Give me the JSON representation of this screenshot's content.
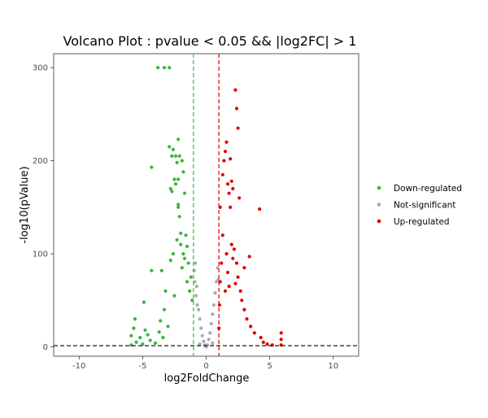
{
  "chart_data": {
    "type": "scatter",
    "title": "Volcano Plot : pvalue < 0.05 && |log2FC| > 1",
    "xlabel": "log2FoldChange",
    "ylabel": "-log10(pValue)",
    "xlim": [
      -12,
      12
    ],
    "ylim": [
      -10,
      315
    ],
    "xticks": [
      -10,
      -5,
      0,
      5,
      10
    ],
    "yticks": [
      0,
      100,
      200,
      300
    ],
    "xtick_labels": [
      "-10",
      "-5",
      "0",
      "5",
      "10"
    ],
    "ytick_labels": [
      "0",
      "100",
      "200",
      "300"
    ],
    "grid": false,
    "legend_position": "right",
    "thresholds": {
      "log2fc_low": -1,
      "log2fc_high": 1,
      "pvalue_line": 1.3
    },
    "series": [
      {
        "name": "Down-regulated",
        "color": "#3cb43c",
        "points": [
          [
            -5.9,
            2
          ],
          [
            -5.9,
            12
          ],
          [
            -5.7,
            20
          ],
          [
            -5.6,
            30
          ],
          [
            -5.5,
            5
          ],
          [
            -5.2,
            10
          ],
          [
            -5.0,
            3
          ],
          [
            -4.9,
            48
          ],
          [
            -4.8,
            18
          ],
          [
            -4.6,
            13
          ],
          [
            -4.4,
            7
          ],
          [
            -4.3,
            193
          ],
          [
            -4.3,
            82
          ],
          [
            -4.0,
            4
          ],
          [
            -3.8,
            300
          ],
          [
            -3.7,
            16
          ],
          [
            -3.6,
            28
          ],
          [
            -3.5,
            82
          ],
          [
            -3.4,
            10
          ],
          [
            -3.3,
            300
          ],
          [
            -3.3,
            40
          ],
          [
            -3.2,
            60
          ],
          [
            -3.0,
            22
          ],
          [
            -2.9,
            300
          ],
          [
            -2.9,
            215
          ],
          [
            -2.8,
            170
          ],
          [
            -2.8,
            93
          ],
          [
            -2.7,
            205
          ],
          [
            -2.7,
            167
          ],
          [
            -2.6,
            212
          ],
          [
            -2.6,
            100
          ],
          [
            -2.5,
            180
          ],
          [
            -2.5,
            55
          ],
          [
            -2.4,
            205
          ],
          [
            -2.4,
            175
          ],
          [
            -2.3,
            198
          ],
          [
            -2.3,
            115
          ],
          [
            -2.2,
            223
          ],
          [
            -2.2,
            180
          ],
          [
            -2.2,
            153
          ],
          [
            -2.2,
            150
          ],
          [
            -2.1,
            205
          ],
          [
            -2.1,
            140
          ],
          [
            -2.0,
            122
          ],
          [
            -2.0,
            110
          ],
          [
            -1.9,
            200
          ],
          [
            -1.9,
            85
          ],
          [
            -1.8,
            188
          ],
          [
            -1.8,
            100
          ],
          [
            -1.7,
            165
          ],
          [
            -1.7,
            95
          ],
          [
            -1.6,
            120
          ],
          [
            -1.5,
            108
          ],
          [
            -1.5,
            70
          ],
          [
            -1.4,
            90
          ],
          [
            -1.3,
            60
          ],
          [
            -1.2,
            75
          ],
          [
            -1.1,
            50
          ]
        ]
      },
      {
        "name": "Not-significant",
        "color": "#aaaaaa",
        "points": [
          [
            -0.95,
            82
          ],
          [
            -0.9,
            70
          ],
          [
            -0.85,
            90
          ],
          [
            -0.8,
            55
          ],
          [
            -0.75,
            65
          ],
          [
            -0.7,
            45
          ],
          [
            -0.6,
            40
          ],
          [
            -0.5,
            30
          ],
          [
            -0.4,
            20
          ],
          [
            -0.3,
            12
          ],
          [
            -0.2,
            6
          ],
          [
            -0.1,
            2
          ],
          [
            0.0,
            0
          ],
          [
            0.1,
            2
          ],
          [
            0.2,
            8
          ],
          [
            0.3,
            15
          ],
          [
            0.4,
            25
          ],
          [
            0.5,
            35
          ],
          [
            0.6,
            45
          ],
          [
            0.7,
            58
          ],
          [
            0.8,
            70
          ],
          [
            0.9,
            85
          ],
          [
            0.95,
            72
          ],
          [
            -0.5,
            3
          ],
          [
            0.5,
            4
          ]
        ]
      },
      {
        "name": "Up-regulated",
        "color": "#e00000",
        "points": [
          [
            1.0,
            20
          ],
          [
            1.05,
            45
          ],
          [
            1.1,
            150
          ],
          [
            1.1,
            70
          ],
          [
            1.2,
            90
          ],
          [
            1.3,
            120
          ],
          [
            1.3,
            185
          ],
          [
            1.4,
            200
          ],
          [
            1.5,
            210
          ],
          [
            1.5,
            60
          ],
          [
            1.6,
            220
          ],
          [
            1.6,
            100
          ],
          [
            1.7,
            175
          ],
          [
            1.7,
            80
          ],
          [
            1.8,
            165
          ],
          [
            1.8,
            65
          ],
          [
            1.9,
            202
          ],
          [
            1.9,
            150
          ],
          [
            2.0,
            178
          ],
          [
            2.0,
            110
          ],
          [
            2.1,
            170
          ],
          [
            2.1,
            95
          ],
          [
            2.2,
            105
          ],
          [
            2.3,
            276
          ],
          [
            2.3,
            68
          ],
          [
            2.4,
            256
          ],
          [
            2.4,
            90
          ],
          [
            2.5,
            235
          ],
          [
            2.5,
            75
          ],
          [
            2.6,
            160
          ],
          [
            2.7,
            60
          ],
          [
            2.8,
            50
          ],
          [
            3.0,
            40
          ],
          [
            3.2,
            30
          ],
          [
            3.5,
            22
          ],
          [
            3.8,
            15
          ],
          [
            4.2,
            148
          ],
          [
            4.3,
            10
          ],
          [
            4.5,
            5
          ],
          [
            4.8,
            3
          ],
          [
            5.2,
            2
          ],
          [
            5.9,
            15
          ],
          [
            5.9,
            8
          ],
          [
            5.9,
            2
          ],
          [
            3.4,
            97
          ],
          [
            3.0,
            85
          ]
        ]
      }
    ]
  }
}
